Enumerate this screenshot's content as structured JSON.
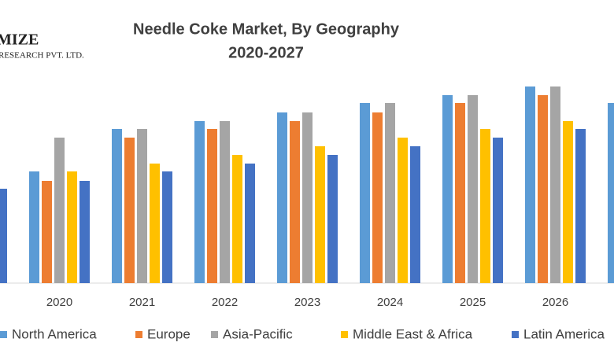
{
  "logo": {
    "name": "MIZE",
    "subtitle": "RESEARCH PVT. LTD."
  },
  "chart_data": {
    "type": "bar",
    "title": "Needle Coke Market, By Geography",
    "subtitle": "2020-2027",
    "categories": [
      null,
      "2020",
      "2021",
      "2022",
      "2023",
      "2024",
      "2025",
      "2026",
      null
    ],
    "series": [
      {
        "name": "North America",
        "color": "#5b9bd5",
        "values": [
          null,
          142,
          196,
          206,
          217,
          229,
          239,
          250,
          229
        ]
      },
      {
        "name": "Europe",
        "color": "#ed7d31",
        "values": [
          null,
          130,
          185,
          196,
          206,
          217,
          229,
          239,
          null
        ]
      },
      {
        "name": "Asia-Pacific",
        "color": "#a5a5a5",
        "values": [
          null,
          185,
          196,
          206,
          217,
          229,
          239,
          250,
          null
        ]
      },
      {
        "name": "Middle East & Africa",
        "color": "#ffc000",
        "values": [
          null,
          142,
          152,
          163,
          174,
          185,
          196,
          206,
          null
        ]
      },
      {
        "name": "Latin America",
        "color": "#4472c4",
        "values": [
          120,
          130,
          142,
          152,
          163,
          174,
          185,
          196,
          null
        ]
      }
    ],
    "ylim": [
      0,
      260
    ],
    "legend": "bottom"
  }
}
